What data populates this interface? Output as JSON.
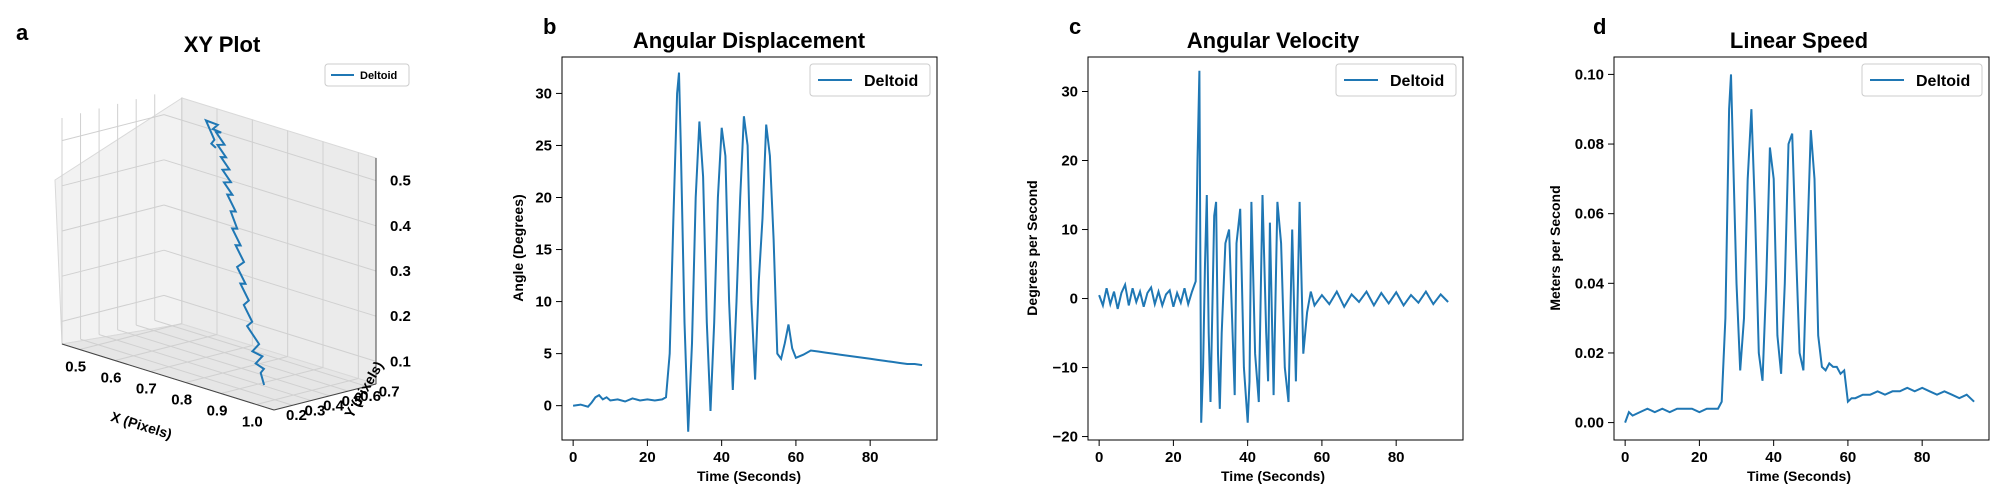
{
  "colors": {
    "series": "#1f77b4",
    "grid3d": "#cccccc",
    "pane": "#f2f2f2",
    "frame": "#000000"
  },
  "chart_data": [
    {
      "id": "a",
      "type": "line3d",
      "panel_letter": "a",
      "title": "XY Plot",
      "xlabel": "X (Pixels)",
      "ylabel": "Y (Pixels)",
      "zlabel": "",
      "xlim": [
        0.45,
        1.05
      ],
      "ylim": [
        0.2,
        0.75
      ],
      "zlim": [
        0.05,
        0.55
      ],
      "xticks": [
        0.5,
        0.6,
        0.7,
        0.8,
        0.9,
        1.0
      ],
      "yticks": [
        0.2,
        0.3,
        0.4,
        0.5,
        0.6,
        0.7
      ],
      "zticks": [
        0.1,
        0.2,
        0.3,
        0.4,
        0.5
      ],
      "legend": "top-right",
      "series": [
        {
          "name": "Deltoid",
          "path_xyz": [
            [
              0.98,
              0.28,
              0.08
            ],
            [
              0.96,
              0.3,
              0.1
            ],
            [
              0.99,
              0.26,
              0.12
            ],
            [
              0.93,
              0.33,
              0.11
            ],
            [
              0.97,
              0.29,
              0.14
            ],
            [
              0.91,
              0.35,
              0.13
            ],
            [
              0.95,
              0.31,
              0.16
            ],
            [
              0.89,
              0.36,
              0.18
            ],
            [
              0.92,
              0.33,
              0.2
            ],
            [
              0.87,
              0.38,
              0.22
            ],
            [
              0.9,
              0.35,
              0.24
            ],
            [
              0.85,
              0.4,
              0.26
            ],
            [
              0.88,
              0.37,
              0.27
            ],
            [
              0.83,
              0.42,
              0.29
            ],
            [
              0.86,
              0.4,
              0.31
            ],
            [
              0.81,
              0.45,
              0.33
            ],
            [
              0.84,
              0.42,
              0.34
            ],
            [
              0.79,
              0.47,
              0.36
            ],
            [
              0.82,
              0.44,
              0.37
            ],
            [
              0.77,
              0.5,
              0.39
            ],
            [
              0.8,
              0.47,
              0.4
            ],
            [
              0.75,
              0.52,
              0.42
            ],
            [
              0.78,
              0.49,
              0.43
            ],
            [
              0.73,
              0.54,
              0.44
            ],
            [
              0.76,
              0.52,
              0.45
            ],
            [
              0.71,
              0.57,
              0.46
            ],
            [
              0.74,
              0.55,
              0.47
            ],
            [
              0.69,
              0.6,
              0.48
            ],
            [
              0.72,
              0.57,
              0.49
            ],
            [
              0.67,
              0.62,
              0.5
            ],
            [
              0.7,
              0.6,
              0.51
            ],
            [
              0.65,
              0.65,
              0.52
            ],
            [
              0.68,
              0.62,
              0.53
            ],
            [
              0.63,
              0.67,
              0.52
            ],
            [
              0.66,
              0.64,
              0.54
            ],
            [
              0.6,
              0.69,
              0.53
            ],
            [
              0.64,
              0.66,
              0.5
            ],
            [
              0.61,
              0.7,
              0.48
            ],
            [
              0.66,
              0.63,
              0.49
            ]
          ]
        }
      ]
    },
    {
      "id": "b",
      "type": "line",
      "panel_letter": "b",
      "title": "Angular Displacement",
      "xlabel": "Time (Seconds)",
      "ylabel": "Angle (Degrees)",
      "xlim": [
        -3,
        98
      ],
      "ylim": [
        -3.3,
        33.5
      ],
      "xticks": [
        0,
        20,
        40,
        60,
        80
      ],
      "yticks": [
        0,
        5,
        10,
        15,
        20,
        25,
        30
      ],
      "legend": "top-right",
      "series": [
        {
          "name": "Deltoid",
          "x": [
            0,
            2,
            4,
            5,
            6,
            7,
            8,
            9,
            10,
            12,
            14,
            16,
            18,
            20,
            22,
            24,
            25,
            26,
            27,
            28,
            28.5,
            29,
            30,
            31,
            32,
            33,
            34,
            35,
            36,
            37,
            38,
            39,
            40,
            41,
            42,
            43,
            44,
            45,
            46,
            47,
            48,
            49,
            50,
            51,
            52,
            53,
            54,
            55,
            56,
            57,
            58,
            59,
            60,
            62,
            64,
            66,
            68,
            70,
            72,
            74,
            76,
            78,
            80,
            82,
            84,
            86,
            88,
            90,
            92,
            94
          ],
          "y": [
            0,
            0.1,
            -0.1,
            0.3,
            0.8,
            1.0,
            0.6,
            0.8,
            0.5,
            0.6,
            0.4,
            0.7,
            0.5,
            0.6,
            0.5,
            0.6,
            0.8,
            5,
            18,
            30,
            32,
            25,
            8,
            -2.5,
            6,
            20,
            27.3,
            22,
            8,
            -0.5,
            8,
            20,
            26.7,
            24,
            10,
            1.5,
            10,
            20,
            27.8,
            25,
            10,
            2.5,
            12,
            18,
            27,
            24,
            16,
            5,
            4.5,
            6,
            7.8,
            5.5,
            4.6,
            4.9,
            5.3,
            5.2,
            5.1,
            5.0,
            4.9,
            4.8,
            4.7,
            4.6,
            4.5,
            4.4,
            4.3,
            4.2,
            4.1,
            4.0,
            4.0,
            3.9
          ]
        }
      ]
    },
    {
      "id": "c",
      "type": "line",
      "panel_letter": "c",
      "title": "Angular Velocity",
      "xlabel": "Time (Seconds)",
      "ylabel": "Degrees per Second",
      "xlim": [
        -3,
        98
      ],
      "ylim": [
        -20.5,
        35
      ],
      "xticks": [
        0,
        20,
        40,
        60,
        80
      ],
      "yticks": [
        -20,
        -10,
        0,
        10,
        20,
        30
      ],
      "legend": "top-right",
      "series": [
        {
          "name": "Deltoid",
          "x": [
            0,
            1,
            2,
            3,
            4,
            5,
            6,
            7,
            8,
            9,
            10,
            11,
            12,
            13,
            14,
            15,
            16,
            17,
            18,
            19,
            20,
            21,
            22,
            23,
            24,
            25,
            26,
            26.5,
            27,
            27.5,
            28,
            28.5,
            29,
            29.5,
            30,
            31,
            31.5,
            32,
            32.5,
            33,
            34,
            35,
            36,
            36.5,
            37,
            38,
            39,
            40,
            40.5,
            41,
            42,
            43,
            44,
            45,
            45.5,
            46,
            47,
            48,
            49,
            50,
            51,
            52,
            53,
            54,
            55,
            56,
            57,
            58,
            60,
            62,
            64,
            66,
            68,
            70,
            72,
            74,
            76,
            78,
            80,
            82,
            84,
            86,
            88,
            90,
            92,
            94
          ],
          "y": [
            0.5,
            -1,
            1.5,
            -0.8,
            1,
            -1.5,
            0.8,
            2,
            -1,
            1.5,
            -0.5,
            1,
            -1.2,
            0.8,
            1.6,
            -0.8,
            1,
            -1,
            0.6,
            1.2,
            -1.2,
            0.8,
            -0.6,
            1.5,
            -0.8,
            1,
            2.5,
            20,
            33,
            -18,
            -10,
            5,
            15,
            -5,
            -15,
            12,
            14,
            -8,
            -16,
            -5,
            8,
            10,
            -6,
            -14,
            8,
            13,
            -10,
            -18,
            -12,
            14,
            -8,
            -15,
            15,
            -5,
            -12,
            11,
            -14,
            14,
            8,
            -10,
            -15,
            10,
            -12,
            14,
            -8,
            -2,
            1,
            -1,
            0.5,
            -0.8,
            1,
            -1.2,
            0.6,
            -0.5,
            1,
            -1,
            0.8,
            -0.7,
            0.9,
            -1,
            0.5,
            -0.6,
            1,
            -0.8,
            0.6,
            -0.5
          ]
        }
      ]
    },
    {
      "id": "d",
      "type": "line",
      "panel_letter": "d",
      "title": "Linear Speed",
      "xlabel": "Time (Seconds)",
      "ylabel": "Meters per Second",
      "xlim": [
        -3,
        98
      ],
      "ylim": [
        -0.005,
        0.105
      ],
      "xticks": [
        0,
        20,
        40,
        60,
        80
      ],
      "yticks": [
        0.0,
        0.02,
        0.04,
        0.06,
        0.08,
        0.1
      ],
      "ytick_labels": [
        "0.00",
        "0.02",
        "0.04",
        "0.06",
        "0.08",
        "0.10"
      ],
      "legend": "top-right",
      "series": [
        {
          "name": "Deltoid",
          "x": [
            0,
            1,
            2,
            4,
            6,
            8,
            10,
            12,
            14,
            16,
            18,
            20,
            22,
            24,
            25,
            26,
            27,
            28,
            28.5,
            29,
            30,
            31,
            32,
            33,
            34,
            35,
            36,
            37,
            38,
            39,
            40,
            41,
            42,
            43,
            44,
            45,
            46,
            47,
            48,
            49,
            50,
            51,
            52,
            53,
            54,
            55,
            56,
            57,
            58,
            59,
            60,
            61,
            62,
            64,
            66,
            68,
            70,
            72,
            74,
            76,
            78,
            80,
            82,
            84,
            86,
            88,
            90,
            92,
            94
          ],
          "y": [
            0.0,
            0.003,
            0.002,
            0.003,
            0.004,
            0.003,
            0.004,
            0.003,
            0.004,
            0.004,
            0.004,
            0.003,
            0.004,
            0.004,
            0.004,
            0.006,
            0.03,
            0.09,
            0.1,
            0.08,
            0.04,
            0.015,
            0.03,
            0.07,
            0.09,
            0.06,
            0.02,
            0.012,
            0.04,
            0.079,
            0.07,
            0.025,
            0.014,
            0.04,
            0.08,
            0.083,
            0.05,
            0.02,
            0.015,
            0.05,
            0.084,
            0.07,
            0.025,
            0.016,
            0.015,
            0.017,
            0.016,
            0.016,
            0.014,
            0.015,
            0.006,
            0.007,
            0.007,
            0.008,
            0.008,
            0.009,
            0.008,
            0.009,
            0.009,
            0.01,
            0.009,
            0.01,
            0.009,
            0.008,
            0.009,
            0.008,
            0.007,
            0.008,
            0.006
          ]
        }
      ]
    }
  ]
}
